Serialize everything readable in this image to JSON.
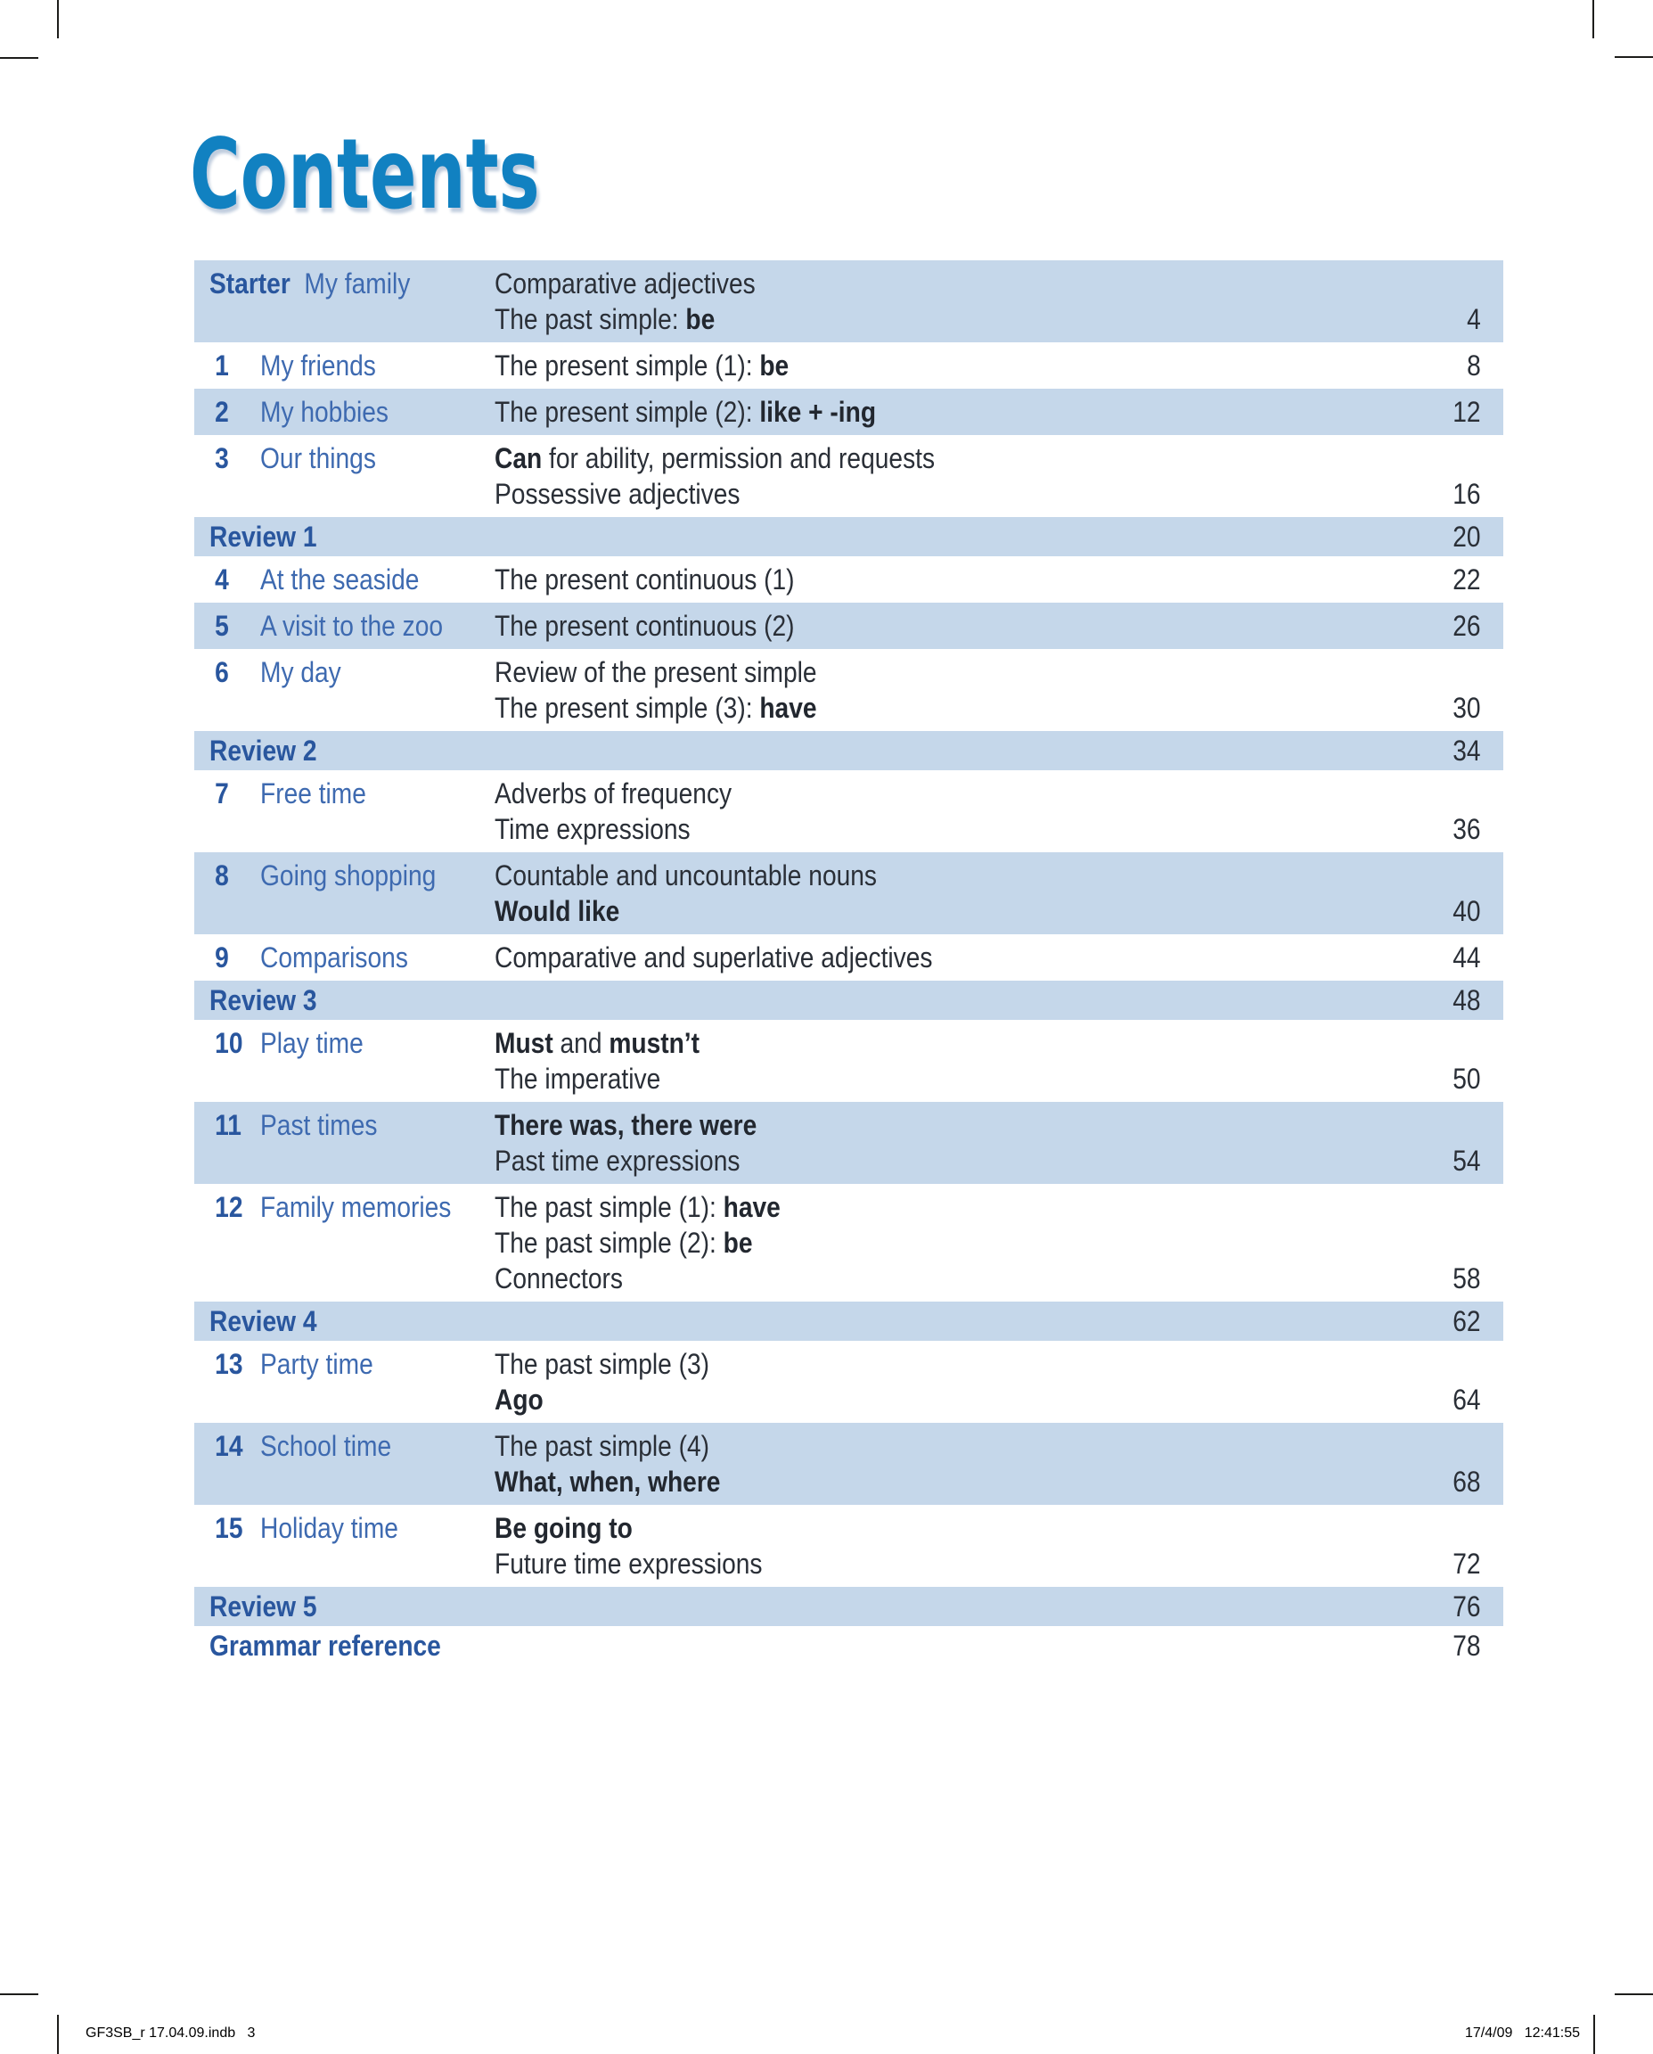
{
  "title": "Contents",
  "colors": {
    "accent_blue": "#1181c1",
    "row_shade": "#c5d7ea",
    "number_blue": "#29569e",
    "title_blue": "#3e6ab0",
    "topic_text": "#2a2f37"
  },
  "footer": {
    "left": "GF3SB_r 17.04.09.indb   3",
    "right": "17/4/09   12:41:55"
  },
  "toc": {
    "rows": [
      {
        "kind": "starter",
        "number": "Starter",
        "title": "My family",
        "shaded": true,
        "page": "4",
        "topics": [
          [
            {
              "t": "Comparative adjectives"
            }
          ],
          [
            {
              "t": "The past simple: "
            },
            {
              "t": "be",
              "b": true
            }
          ]
        ]
      },
      {
        "kind": "unit",
        "number": "1",
        "title": "My friends",
        "shaded": false,
        "page": "8",
        "topics": [
          [
            {
              "t": "The present simple (1): "
            },
            {
              "t": "be",
              "b": true
            }
          ]
        ]
      },
      {
        "kind": "unit",
        "number": "2",
        "title": "My hobbies",
        "shaded": true,
        "page": "12",
        "topics": [
          [
            {
              "t": "The present simple (2): "
            },
            {
              "t": "like + -ing",
              "b": true
            }
          ]
        ]
      },
      {
        "kind": "unit",
        "number": "3",
        "title": "Our things",
        "shaded": false,
        "page": "16",
        "topics": [
          [
            {
              "t": "Can",
              "b": true
            },
            {
              "t": " for ability, permission and requests"
            }
          ],
          [
            {
              "t": "Possessive adjectives"
            }
          ]
        ]
      },
      {
        "kind": "review",
        "label": "Review 1",
        "shaded": true,
        "page": "20",
        "topics": []
      },
      {
        "kind": "unit",
        "number": "4",
        "title": "At the seaside",
        "shaded": false,
        "page": "22",
        "topics": [
          [
            {
              "t": "The present continuous (1)"
            }
          ]
        ]
      },
      {
        "kind": "unit",
        "number": "5",
        "title": "A visit to the zoo",
        "shaded": true,
        "page": "26",
        "topics": [
          [
            {
              "t": "The present continuous (2)"
            }
          ]
        ]
      },
      {
        "kind": "unit",
        "number": "6",
        "title": "My day",
        "shaded": false,
        "page": "30",
        "topics": [
          [
            {
              "t": "Review of the present simple"
            }
          ],
          [
            {
              "t": "The present simple (3): "
            },
            {
              "t": "have",
              "b": true
            }
          ]
        ]
      },
      {
        "kind": "review",
        "label": "Review 2",
        "shaded": true,
        "page": "34",
        "topics": []
      },
      {
        "kind": "unit",
        "number": "7",
        "title": "Free time",
        "shaded": false,
        "page": "36",
        "topics": [
          [
            {
              "t": "Adverbs of frequency"
            }
          ],
          [
            {
              "t": "Time expressions"
            }
          ]
        ]
      },
      {
        "kind": "unit",
        "number": "8",
        "title": "Going shopping",
        "shaded": true,
        "page": "40",
        "topics": [
          [
            {
              "t": "Countable and uncountable nouns"
            }
          ],
          [
            {
              "t": "Would like",
              "b": true
            }
          ]
        ]
      },
      {
        "kind": "unit",
        "number": "9",
        "title": "Comparisons",
        "shaded": false,
        "page": "44",
        "topics": [
          [
            {
              "t": "Comparative and superlative adjectives"
            }
          ]
        ]
      },
      {
        "kind": "review",
        "label": "Review 3",
        "shaded": true,
        "page": "48",
        "topics": []
      },
      {
        "kind": "unit",
        "number": "10",
        "title": "Play time",
        "shaded": false,
        "page": "50",
        "topics": [
          [
            {
              "t": "Must",
              "b": true
            },
            {
              "t": " and "
            },
            {
              "t": "mustn’t",
              "b": true
            }
          ],
          [
            {
              "t": "The imperative"
            }
          ]
        ]
      },
      {
        "kind": "unit",
        "number": "11",
        "title": "Past times",
        "shaded": true,
        "page": "54",
        "topics": [
          [
            {
              "t": "There was, there were",
              "b": true
            }
          ],
          [
            {
              "t": "Past time expressions"
            }
          ]
        ]
      },
      {
        "kind": "unit",
        "number": "12",
        "title": "Family memories",
        "shaded": false,
        "page": "58",
        "topics": [
          [
            {
              "t": "The past simple (1): "
            },
            {
              "t": "have",
              "b": true
            }
          ],
          [
            {
              "t": "The past simple (2): "
            },
            {
              "t": "be",
              "b": true
            }
          ],
          [
            {
              "t": "Connectors"
            }
          ]
        ]
      },
      {
        "kind": "review",
        "label": "Review 4",
        "shaded": true,
        "page": "62",
        "topics": []
      },
      {
        "kind": "unit",
        "number": "13",
        "title": "Party time",
        "shaded": false,
        "page": "64",
        "topics": [
          [
            {
              "t": "The past simple (3)"
            }
          ],
          [
            {
              "t": "Ago",
              "b": true
            }
          ]
        ]
      },
      {
        "kind": "unit",
        "number": "14",
        "title": "School time",
        "shaded": true,
        "page": "68",
        "topics": [
          [
            {
              "t": "The past simple (4)"
            }
          ],
          [
            {
              "t": "What, when, where",
              "b": true
            }
          ]
        ]
      },
      {
        "kind": "unit",
        "number": "15",
        "title": "Holiday time",
        "shaded": false,
        "page": "72",
        "topics": [
          [
            {
              "t": "Be going to",
              "b": true
            }
          ],
          [
            {
              "t": "Future time expressions"
            }
          ]
        ]
      },
      {
        "kind": "review",
        "label": "Review 5",
        "shaded": true,
        "page": "76",
        "topics": []
      },
      {
        "kind": "grammar",
        "label": "Grammar reference",
        "shaded": false,
        "page": "78",
        "topics": []
      }
    ]
  },
  "crop_marks": "printer-registration-lines"
}
